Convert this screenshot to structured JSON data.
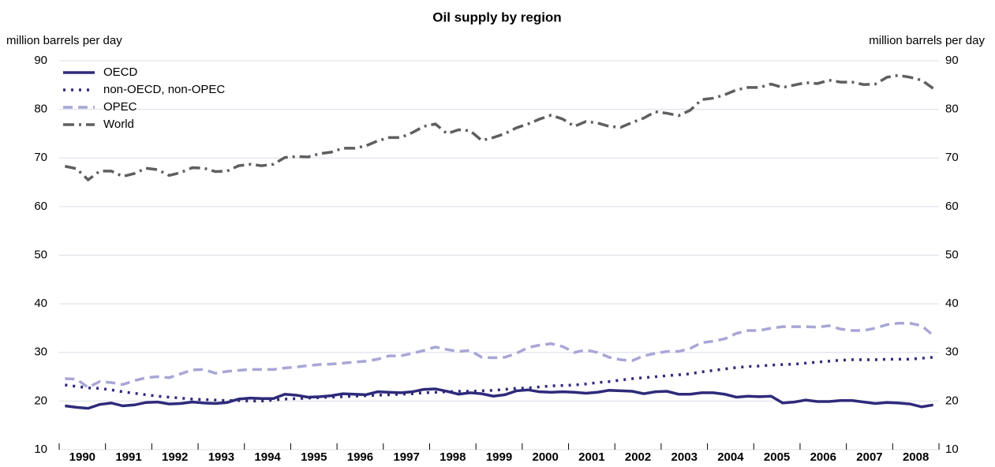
{
  "chart_data": {
    "type": "line",
    "title": "Oil supply by region",
    "ylabel": "million barrels per day",
    "y2label": "million barrels per day",
    "categories": [
      "1990",
      null,
      null,
      null,
      "1991",
      null,
      null,
      null,
      "1992",
      null,
      null,
      null,
      "1993",
      null,
      null,
      null,
      "1994",
      null,
      null,
      null,
      "1995",
      null,
      null,
      null,
      "1996",
      null,
      null,
      null,
      "1997",
      null,
      null,
      null,
      "1998",
      null,
      null,
      null,
      "1999",
      null,
      null,
      null,
      "2000",
      null,
      null,
      null,
      "2001",
      null,
      null,
      null,
      "2002",
      null,
      null,
      null,
      "2003",
      null,
      null,
      null,
      "2004",
      null,
      null,
      null,
      "2005",
      null,
      null,
      null,
      "2006",
      null,
      null,
      null,
      "2007",
      null,
      null,
      null,
      "2008",
      null,
      null,
      null
    ],
    "ylim": [
      10,
      90
    ],
    "yticks": [
      10,
      20,
      30,
      40,
      50,
      60,
      70,
      80,
      90
    ],
    "y2lim": [
      10,
      90
    ],
    "y2ticks": [
      10,
      20,
      30,
      40,
      50,
      60,
      70,
      80,
      90
    ],
    "grid": true,
    "legend": "upper left",
    "series": [
      {
        "name": "OECD",
        "color": "#2e2a7a",
        "style": "solid",
        "values": [
          19.0,
          18.7,
          18.5,
          19.3,
          19.6,
          19.0,
          19.2,
          19.7,
          19.8,
          19.4,
          19.5,
          19.8,
          19.6,
          19.5,
          19.7,
          20.4,
          20.6,
          20.5,
          20.5,
          21.4,
          21.2,
          20.8,
          20.9,
          21.1,
          21.5,
          21.4,
          21.3,
          21.9,
          21.8,
          21.7,
          21.9,
          22.4,
          22.5,
          22.0,
          21.4,
          21.7,
          21.5,
          21.0,
          21.3,
          22.1,
          22.3,
          21.9,
          21.8,
          21.9,
          21.8,
          21.6,
          21.8,
          22.2,
          22.1,
          22.0,
          21.5,
          21.9,
          22.0,
          21.4,
          21.4,
          21.7,
          21.7,
          21.4,
          20.8,
          21.0,
          20.9,
          21.0,
          19.6,
          19.8,
          20.2,
          19.9,
          19.9,
          20.1,
          20.1,
          19.8,
          19.5,
          19.7,
          19.6,
          19.4,
          18.8,
          19.2
        ]
      },
      {
        "name": "non-OECD, non-OPEC",
        "color": "#2e2a7a",
        "style": "dotted",
        "values": [
          23.3,
          23.0,
          22.7,
          22.6,
          22.3,
          21.9,
          21.6,
          21.3,
          21.0,
          20.8,
          20.6,
          20.4,
          20.3,
          20.2,
          20.1,
          20.1,
          20.0,
          20.0,
          20.2,
          20.4,
          20.5,
          20.6,
          20.7,
          20.8,
          20.9,
          21.0,
          21.1,
          21.2,
          21.3,
          21.4,
          21.5,
          21.7,
          21.8,
          21.9,
          22.0,
          22.0,
          22.1,
          22.2,
          22.4,
          22.6,
          22.7,
          22.9,
          23.1,
          23.2,
          23.3,
          23.5,
          23.8,
          24.0,
          24.3,
          24.6,
          24.8,
          25.0,
          25.2,
          25.4,
          25.6,
          26.0,
          26.3,
          26.6,
          26.9,
          27.1,
          27.2,
          27.4,
          27.5,
          27.6,
          27.8,
          28.0,
          28.2,
          28.4,
          28.5,
          28.5,
          28.5,
          28.6,
          28.6,
          28.6,
          28.8,
          29.0
        ]
      },
      {
        "name": "OPEC",
        "color": "#a9a6d6",
        "style": "dashed",
        "values": [
          24.6,
          24.5,
          22.8,
          24.0,
          23.8,
          23.4,
          24.2,
          24.8,
          25.0,
          24.8,
          25.6,
          26.4,
          26.5,
          25.7,
          26.1,
          26.3,
          26.5,
          26.5,
          26.5,
          26.8,
          27.0,
          27.3,
          27.5,
          27.6,
          27.8,
          28.0,
          28.2,
          28.6,
          29.3,
          29.3,
          29.8,
          30.4,
          31.1,
          30.6,
          30.2,
          30.4,
          29.0,
          28.9,
          29.0,
          29.8,
          31.0,
          31.5,
          31.8,
          31.2,
          30.0,
          30.5,
          30.0,
          29.0,
          28.5,
          28.3,
          29.3,
          29.8,
          30.2,
          30.2,
          30.8,
          32.0,
          32.3,
          32.8,
          33.9,
          34.5,
          34.5,
          35.0,
          35.3,
          35.3,
          35.3,
          35.2,
          35.5,
          34.8,
          34.5,
          34.5,
          35.0,
          35.7,
          36.0,
          36.0,
          35.5,
          33.5
        ]
      },
      {
        "name": "World",
        "color": "#5f5f5f",
        "style": "dashdot",
        "values": [
          68.3,
          67.8,
          65.5,
          67.3,
          67.3,
          66.2,
          66.8,
          67.9,
          67.6,
          66.4,
          67.0,
          68.0,
          67.9,
          67.2,
          67.3,
          68.4,
          68.7,
          68.4,
          68.7,
          70.1,
          70.3,
          70.2,
          70.9,
          71.2,
          72.0,
          72.0,
          72.5,
          73.5,
          74.2,
          74.2,
          75.2,
          76.5,
          77.0,
          75.0,
          75.8,
          75.6,
          73.6,
          74.2,
          75.0,
          76.2,
          77.0,
          78.0,
          78.8,
          78.0,
          76.5,
          77.5,
          77.2,
          76.5,
          76.3,
          77.3,
          78.2,
          79.5,
          79.2,
          78.7,
          79.8,
          82.0,
          82.3,
          83.0,
          84.0,
          84.5,
          84.5,
          85.2,
          84.5,
          85.0,
          85.5,
          85.3,
          86.0,
          85.6,
          85.6,
          85.1,
          85.2,
          86.6,
          87.0,
          86.6,
          86.0,
          84.3
        ]
      }
    ]
  }
}
